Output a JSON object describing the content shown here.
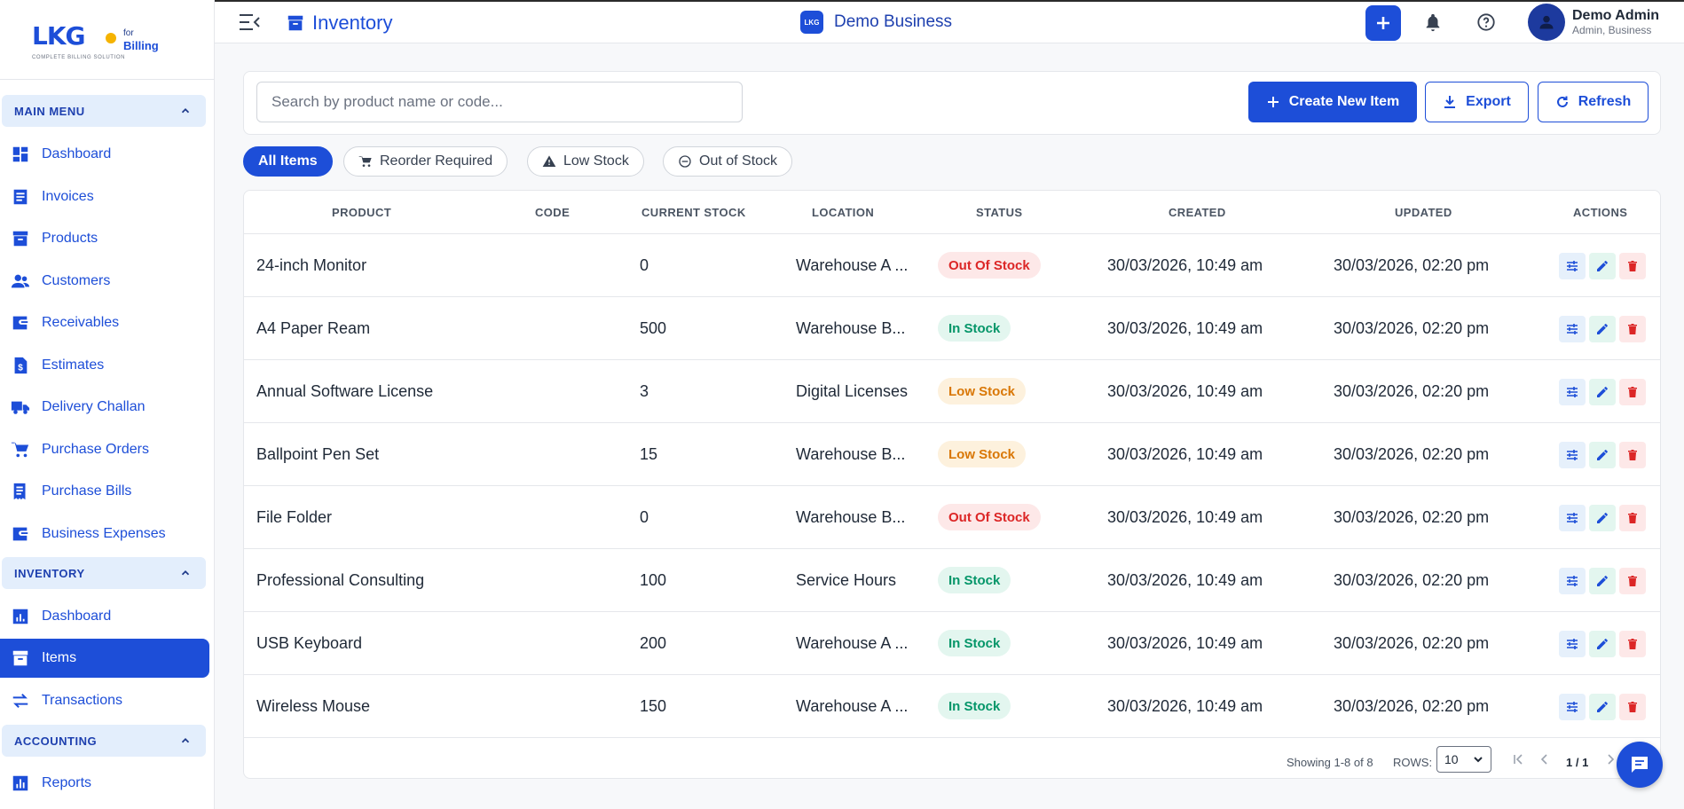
{
  "brand": {
    "logo": "LKG",
    "for": "for",
    "billing": "Billing",
    "tagline": "COMPLETE BILLING SOLUTION",
    "accent": "#1d4ed8",
    "highlight": "#f5b301"
  },
  "sidebar": {
    "main_menu": {
      "label": "MAIN MENU",
      "items": [
        {
          "label": "Dashboard",
          "icon": "dashboard-icon"
        },
        {
          "label": "Invoices",
          "icon": "invoice-icon"
        },
        {
          "label": "Products",
          "icon": "archive-box-icon"
        },
        {
          "label": "Customers",
          "icon": "people-icon"
        },
        {
          "label": "Receivables",
          "icon": "wallet-icon"
        },
        {
          "label": "Estimates",
          "icon": "dollar-file-icon"
        },
        {
          "label": "Delivery Challan",
          "icon": "truck-icon"
        },
        {
          "label": "Purchase Orders",
          "icon": "cart-icon"
        },
        {
          "label": "Purchase Bills",
          "icon": "receipt-icon"
        },
        {
          "label": "Business Expenses",
          "icon": "wallet-icon"
        }
      ]
    },
    "inventory": {
      "label": "INVENTORY",
      "items": [
        {
          "label": "Dashboard",
          "icon": "chart-icon"
        },
        {
          "label": "Items",
          "icon": "archive-box-icon",
          "active": true
        },
        {
          "label": "Transactions",
          "icon": "swap-icon"
        }
      ]
    },
    "accounting": {
      "label": "ACCOUNTING",
      "items": [
        {
          "label": "Reports",
          "icon": "bar-chart-icon"
        }
      ]
    }
  },
  "topbar": {
    "page_title": "Inventory",
    "business_badge": "LKG",
    "business_name": "Demo Business",
    "user_name": "Demo Admin",
    "user_role": "Admin, Business"
  },
  "toolbar": {
    "search_placeholder": "Search by product name or code...",
    "create_label": "Create New Item",
    "export_label": "Export",
    "refresh_label": "Refresh"
  },
  "filters": [
    {
      "label": "All Items",
      "active": true
    },
    {
      "label": "Reorder Required",
      "icon": "cart-icon"
    },
    {
      "label": "Low Stock",
      "icon": "warning-icon"
    },
    {
      "label": "Out of Stock",
      "icon": "block-icon"
    }
  ],
  "table": {
    "columns": [
      "PRODUCT",
      "CODE",
      "CURRENT STOCK",
      "LOCATION",
      "STATUS",
      "CREATED",
      "UPDATED",
      "ACTIONS"
    ],
    "rows": [
      {
        "product": "24-inch Monitor",
        "code": "",
        "stock": "0",
        "location": "Warehouse A ...",
        "status": "Out Of Stock",
        "created": "30/03/2026, 10:49 am",
        "updated": "30/03/2026, 02:20 pm"
      },
      {
        "product": "A4 Paper Ream",
        "code": "",
        "stock": "500",
        "location": "Warehouse B...",
        "status": "In Stock",
        "created": "30/03/2026, 10:49 am",
        "updated": "30/03/2026, 02:20 pm"
      },
      {
        "product": "Annual Software License",
        "code": "",
        "stock": "3",
        "location": "Digital Licenses",
        "status": "Low Stock",
        "created": "30/03/2026, 10:49 am",
        "updated": "30/03/2026, 02:20 pm"
      },
      {
        "product": "Ballpoint Pen Set",
        "code": "",
        "stock": "15",
        "location": "Warehouse B...",
        "status": "Low Stock",
        "created": "30/03/2026, 10:49 am",
        "updated": "30/03/2026, 02:20 pm"
      },
      {
        "product": "File Folder",
        "code": "",
        "stock": "0",
        "location": "Warehouse B...",
        "status": "Out Of Stock",
        "created": "30/03/2026, 10:49 am",
        "updated": "30/03/2026, 02:20 pm"
      },
      {
        "product": "Professional Consulting",
        "code": "",
        "stock": "100",
        "location": "Service Hours",
        "status": "In Stock",
        "created": "30/03/2026, 10:49 am",
        "updated": "30/03/2026, 02:20 pm"
      },
      {
        "product": "USB Keyboard",
        "code": "",
        "stock": "200",
        "location": "Warehouse A ...",
        "status": "In Stock",
        "created": "30/03/2026, 10:49 am",
        "updated": "30/03/2026, 02:20 pm"
      },
      {
        "product": "Wireless Mouse",
        "code": "",
        "stock": "150",
        "location": "Warehouse A ...",
        "status": "In Stock",
        "created": "30/03/2026, 10:49 am",
        "updated": "30/03/2026, 02:20 pm"
      }
    ]
  },
  "pagination": {
    "showing": "Showing 1-8 of 8",
    "rows_label": "ROWS:",
    "rows_value": "10",
    "page": "1 / 1"
  },
  "status_colors": {
    "out": "#dc2626",
    "in": "#059669",
    "low": "#d97706"
  }
}
